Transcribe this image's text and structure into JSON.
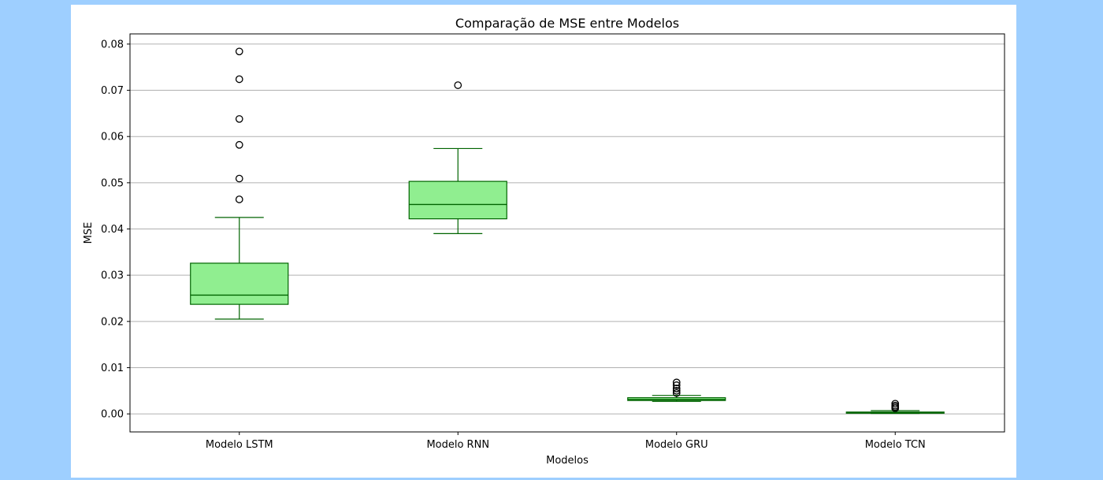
{
  "page": {
    "background": "#9ecfff",
    "figure_background": "#ffffff"
  },
  "chart_data": {
    "type": "box",
    "title": "Comparação de MSE entre Modelos",
    "xlabel": "Modelos",
    "ylabel": "MSE",
    "ylim": [
      -0.0039,
      0.0822
    ],
    "yticks": [
      0.0,
      0.01,
      0.02,
      0.03,
      0.04,
      0.05,
      0.06,
      0.07,
      0.08
    ],
    "ytick_labels": [
      "0.00",
      "0.01",
      "0.02",
      "0.03",
      "0.04",
      "0.05",
      "0.06",
      "0.07",
      "0.08"
    ],
    "grid": "horizontal",
    "colors": {
      "box_fill": "#90ee90",
      "box_edge": "#006400",
      "median": "#006400",
      "whisker": "#006400",
      "outlier_edge": "#000000",
      "grid": "#b0b0b0"
    },
    "categories": [
      "Modelo LSTM",
      "Modelo RNN",
      "Modelo GRU",
      "Modelo TCN"
    ],
    "boxes": [
      {
        "name": "Modelo LSTM",
        "whislo": 0.0205,
        "q1": 0.0237,
        "med": 0.0257,
        "q3": 0.0326,
        "whishi": 0.0425,
        "fliers": [
          0.0464,
          0.0509,
          0.0582,
          0.0638,
          0.0724,
          0.0784
        ]
      },
      {
        "name": "Modelo RNN",
        "whislo": 0.039,
        "q1": 0.0422,
        "med": 0.0453,
        "q3": 0.0503,
        "whishi": 0.0574,
        "fliers": [
          0.0711
        ]
      },
      {
        "name": "Modelo GRU",
        "whislo": 0.0027,
        "q1": 0.0029,
        "med": 0.0031,
        "q3": 0.0035,
        "whishi": 0.004,
        "fliers": [
          0.0045,
          0.005,
          0.0055,
          0.0062,
          0.0068
        ]
      },
      {
        "name": "Modelo TCN",
        "whislo": 0.0001,
        "q1": 0.0002,
        "med": 0.0003,
        "q3": 0.0004,
        "whishi": 0.0007,
        "fliers": [
          0.0012,
          0.0015,
          0.0018,
          0.0022
        ]
      }
    ]
  }
}
